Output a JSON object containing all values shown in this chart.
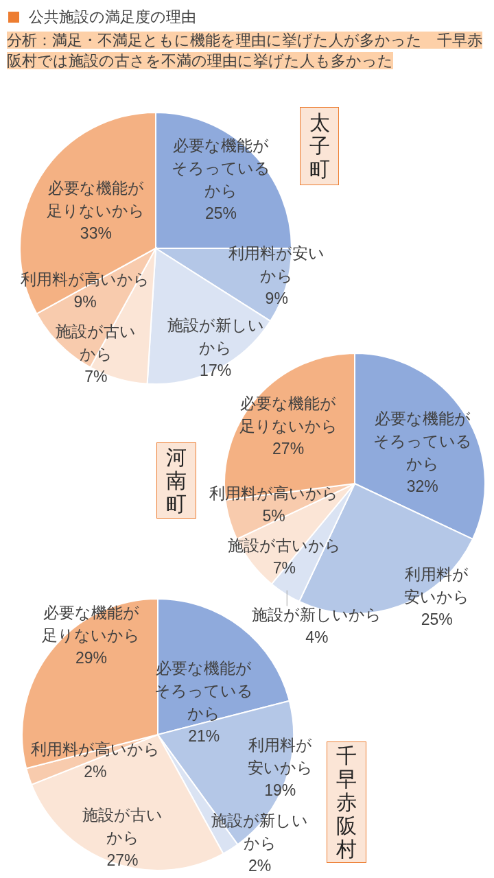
{
  "chart_data": [
    {
      "type": "pie",
      "title": "公共施設の満足度の理由",
      "subtitle": "分析：満足・不満足ともに機能を理由に挙げた人が多かった　千早赤阪村では施設の古さを不満の理由に挙げた人も多かった",
      "annotations": [
        "太子町"
      ],
      "categories": [
        "必要な機能がそろっているから",
        "利用料が安いから",
        "施設が新しいから",
        "施設が古いから",
        "利用料が高いから",
        "必要な機能が足りないから"
      ],
      "values": [
        25,
        9,
        17,
        7,
        9,
        33
      ],
      "value_labels": [
        "25%",
        "9%",
        "17%",
        "7%",
        "9%",
        "33%"
      ],
      "colors": [
        "#8faadc",
        "#b4c7e7",
        "#dae3f3",
        "#fbe5d6",
        "#f8cbad",
        "#f4b183"
      ]
    },
    {
      "type": "pie",
      "annotations": [
        "河南町"
      ],
      "categories": [
        "必要な機能がそろっているから",
        "利用料が安いから",
        "施設が新しいから",
        "施設が古いから",
        "利用料が高いから",
        "必要な機能が足りないから"
      ],
      "values": [
        32,
        25,
        4,
        7,
        5,
        27
      ],
      "value_labels": [
        "32%",
        "25%",
        "4%",
        "7%",
        "5%",
        "27%"
      ],
      "colors": [
        "#8faadc",
        "#b4c7e7",
        "#dae3f3",
        "#fbe5d6",
        "#f8cbad",
        "#f4b183"
      ]
    },
    {
      "type": "pie",
      "annotations": [
        "千早赤阪村"
      ],
      "categories": [
        "必要な機能がそろっているから",
        "利用料が安いから",
        "施設が新しいから",
        "施設が古いから",
        "利用料が高いから",
        "必要な機能が足りないから"
      ],
      "values": [
        21,
        19,
        2,
        27,
        2,
        29
      ],
      "value_labels": [
        "21%",
        "19%",
        "2%",
        "27%",
        "2%",
        "29%"
      ],
      "colors": [
        "#8faadc",
        "#b4c7e7",
        "#dae3f3",
        "#fbe5d6",
        "#f8cbad",
        "#f4b183"
      ]
    }
  ]
}
